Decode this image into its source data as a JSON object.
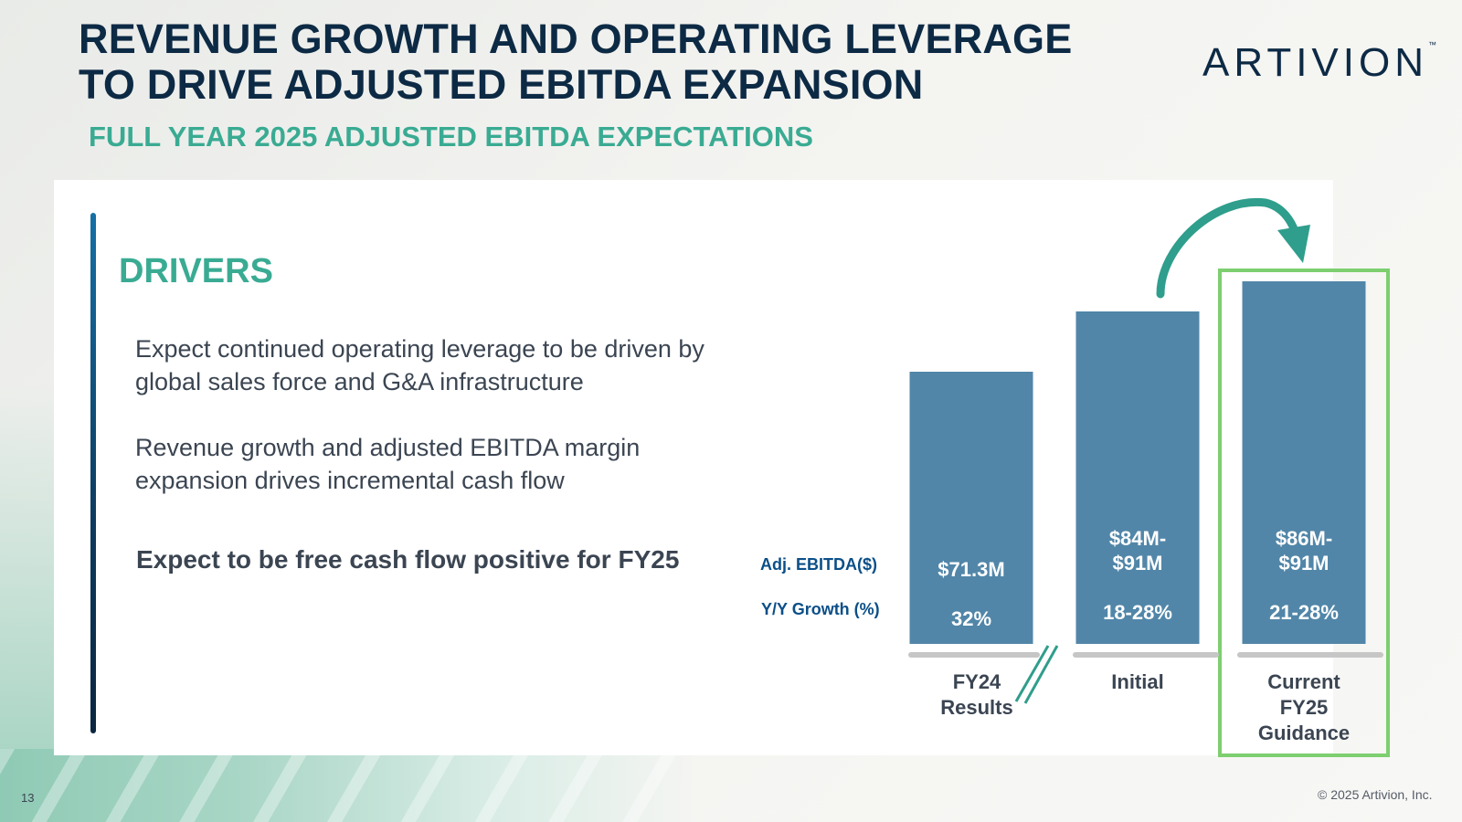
{
  "header": {
    "title_line1": "REVENUE GROWTH AND OPERATING LEVERAGE",
    "title_line2": "TO DRIVE ADJUSTED EBITDA EXPANSION",
    "subtitle": "FULL YEAR 2025 ADJUSTED EBITDA EXPECTATIONS",
    "logo_text": "ARTIVION",
    "logo_tm": "™"
  },
  "drivers": {
    "heading": "DRIVERS",
    "point1_line1": "Expect continued operating leverage to be driven by",
    "point1_line2": "global sales force and G&A infrastructure",
    "point2_line1": "Revenue growth and adjusted EBITDA margin",
    "point2_line2": "expansion drives incremental cash flow",
    "point3": "Expect to be free cash flow positive for FY25"
  },
  "chart_data": {
    "type": "bar",
    "title": "Full Year 2025 Adjusted EBITDA Expectations",
    "row_labels": {
      "ebitda": "Adj. EBITDA($)",
      "growth": "Y/Y Growth (%)"
    },
    "categories": [
      {
        "id": "fy24",
        "lines": [
          "FY24",
          "Results"
        ]
      },
      {
        "id": "initial",
        "lines": [
          "Initial"
        ]
      },
      {
        "id": "current",
        "lines": [
          "Current",
          "FY25",
          "Guidance"
        ]
      }
    ],
    "ebitda_labels": [
      [
        "$71.3M"
      ],
      [
        "$84M-",
        "$91M"
      ],
      [
        "$86M-",
        "$91M"
      ]
    ],
    "growth_labels": [
      "32%",
      "18-28%",
      "21-28%"
    ],
    "values_millions": [
      71.3,
      87.5,
      88.5
    ],
    "ranges_millions": [
      [
        71.3,
        71.3
      ],
      [
        84,
        91
      ],
      [
        86,
        91
      ]
    ],
    "axis_break": true,
    "highlighted_category": "current",
    "colors": {
      "bar": "#5186a8",
      "baseline": "#c6c6c6",
      "highlight_box": "#7dcf6f",
      "arrow": "#2f9e8c",
      "break": "#2f9e8c"
    }
  },
  "footer": {
    "slide_number": "13",
    "copyright": "© 2025 Artivion, Inc."
  }
}
